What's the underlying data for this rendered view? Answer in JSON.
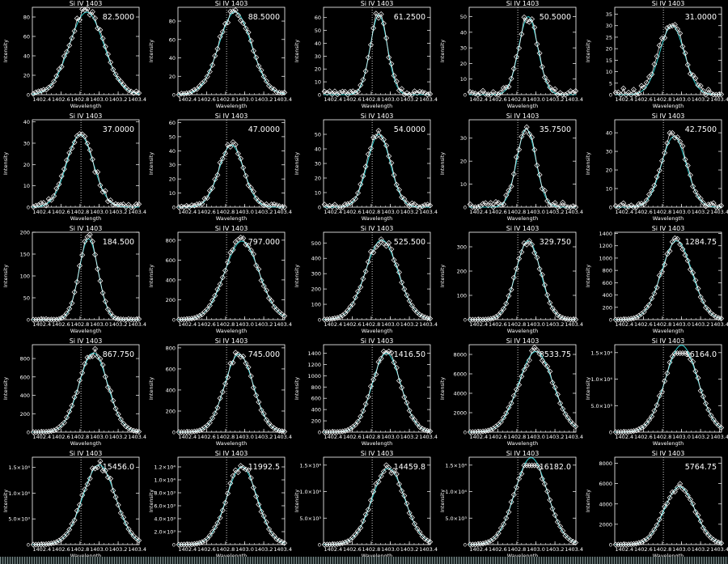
{
  "strip_color": "#7a8a8a",
  "colors": {
    "background": "#000000",
    "axes": "#ffffff",
    "fit": "#2ec4c4",
    "reference_line": "#ffffff"
  },
  "chart_data": [
    {
      "type": "line",
      "title": "Si IV 1403",
      "xlabel": "Wavelength",
      "ylabel": "Intensity",
      "annotation": "82.5000",
      "peak": 85,
      "center": 1402.87,
      "width": 0.18,
      "ylim": [
        0,
        90
      ],
      "yticks": [
        0,
        20,
        40,
        60,
        80
      ],
      "ytick_labels": [
        "0",
        "20",
        "40",
        "60",
        "80"
      ],
      "xlim": [
        1402.3,
        1403.42
      ],
      "xtick_labels": [
        "1402.4",
        "1402.6",
        "1402.8",
        "1403.0",
        "1403.2",
        "1403.4"
      ],
      "ref_x": 1402.81,
      "noise": 3,
      "seed": 1
    },
    {
      "type": "line",
      "title": "Si IV 1403",
      "xlabel": "Wavelength",
      "ylabel": "Intensity",
      "annotation": "88.5000",
      "peak": 90,
      "center": 1402.9,
      "width": 0.17,
      "ylim": [
        0,
        95
      ],
      "yticks": [
        0,
        20,
        40,
        60,
        80
      ],
      "ytick_labels": [
        "0",
        "20",
        "40",
        "60",
        "80"
      ],
      "xlim": [
        1402.3,
        1403.42
      ],
      "xtick_labels": [
        "1402.4",
        "1402.6",
        "1402.8",
        "1403.0",
        "1403.2",
        "1403.4"
      ],
      "ref_x": 1402.81,
      "noise": 2,
      "seed": 2
    },
    {
      "type": "line",
      "title": "Si IV 1403",
      "xlabel": "Wavelength",
      "ylabel": "Intensity",
      "annotation": "61.2500",
      "peak": 62,
      "center": 1402.88,
      "width": 0.09,
      "ylim": [
        0,
        68
      ],
      "yticks": [
        0,
        10,
        20,
        30,
        40,
        50,
        60
      ],
      "ytick_labels": [
        "0",
        "10",
        "20",
        "30",
        "40",
        "50",
        "60"
      ],
      "xlim": [
        1402.3,
        1403.42
      ],
      "xtick_labels": [
        "1402.4",
        "1402.6",
        "1402.8",
        "1403.0",
        "1403.2",
        "1403.4"
      ],
      "ref_x": 1402.81,
      "noise": 4,
      "seed": 3
    },
    {
      "type": "line",
      "title": "Si IV 1403",
      "xlabel": "Wavelength",
      "ylabel": "Intensity",
      "annotation": "50.5000",
      "peak": 50,
      "center": 1402.92,
      "width": 0.1,
      "ylim": [
        0,
        56
      ],
      "yticks": [
        0,
        10,
        20,
        30,
        40,
        50
      ],
      "ytick_labels": [
        "0",
        "10",
        "20",
        "30",
        "40",
        "50"
      ],
      "xlim": [
        1402.3,
        1403.42
      ],
      "xtick_labels": [
        "1402.4",
        "1402.6",
        "1402.8",
        "1403.0",
        "1403.2",
        "1403.4"
      ],
      "ref_x": 1402.81,
      "noise": 4,
      "seed": 4
    },
    {
      "type": "line",
      "title": "Si IV 1403",
      "xlabel": "Wavelength",
      "ylabel": "Intensity",
      "annotation": "31.0000",
      "peak": 30,
      "center": 1402.9,
      "width": 0.13,
      "ylim": [
        0,
        38
      ],
      "yticks": [
        0,
        5,
        10,
        15,
        20,
        25,
        30,
        35
      ],
      "ytick_labels": [
        "0",
        "5",
        "10",
        "15",
        "20",
        "25",
        "30",
        "35"
      ],
      "xlim": [
        1402.3,
        1403.42
      ],
      "xtick_labels": [
        "1402.4",
        "1402.6",
        "1402.8",
        "1403.0",
        "1403.2",
        "1403.4"
      ],
      "ref_x": 1402.81,
      "noise": 4,
      "seed": 5
    },
    {
      "type": "line",
      "title": "Si IV 1403",
      "xlabel": "Wavelength",
      "ylabel": "Intensity",
      "annotation": "37.0000",
      "peak": 34,
      "center": 1402.8,
      "width": 0.14,
      "ylim": [
        0,
        41
      ],
      "yticks": [
        0,
        10,
        20,
        30,
        40
      ],
      "ytick_labels": [
        "0",
        "10",
        "20",
        "30",
        "40"
      ],
      "xlim": [
        1402.3,
        1403.42
      ],
      "xtick_labels": [
        "1402.4",
        "1402.6",
        "1402.8",
        "1403.0",
        "1403.2",
        "1403.4"
      ],
      "ref_x": 1402.81,
      "noise": 3,
      "seed": 6
    },
    {
      "type": "line",
      "title": "Si IV 1403",
      "xlabel": "Wavelength",
      "ylabel": "Intensity",
      "annotation": "47.0000",
      "peak": 44,
      "center": 1402.86,
      "width": 0.13,
      "ylim": [
        0,
        62
      ],
      "yticks": [
        0,
        10,
        20,
        30,
        40,
        50,
        60
      ],
      "ytick_labels": [
        "0",
        "10",
        "20",
        "30",
        "40",
        "50",
        "60"
      ],
      "xlim": [
        1402.3,
        1403.42
      ],
      "xtick_labels": [
        "1402.4",
        "1402.6",
        "1402.8",
        "1403.0",
        "1403.2",
        "1403.4"
      ],
      "ref_x": 1402.81,
      "noise": 3,
      "seed": 7
    },
    {
      "type": "line",
      "title": "Si IV 1403",
      "xlabel": "Wavelength",
      "ylabel": "Intensity",
      "annotation": "54.0000",
      "peak": 50,
      "center": 1402.88,
      "width": 0.12,
      "ylim": [
        0,
        60
      ],
      "yticks": [
        0,
        10,
        20,
        30,
        40,
        50
      ],
      "ytick_labels": [
        "0",
        "10",
        "20",
        "30",
        "40",
        "50"
      ],
      "xlim": [
        1402.3,
        1403.42
      ],
      "xtick_labels": [
        "1402.4",
        "1402.6",
        "1402.8",
        "1403.0",
        "1403.2",
        "1403.4"
      ],
      "ref_x": 1402.81,
      "noise": 3,
      "seed": 8
    },
    {
      "type": "line",
      "title": "Si IV 1403",
      "xlabel": "Wavelength",
      "ylabel": "Intensity",
      "annotation": "35.7500",
      "peak": 34,
      "center": 1402.9,
      "width": 0.1,
      "ylim": [
        0,
        38
      ],
      "yticks": [
        0,
        10,
        20,
        30
      ],
      "ytick_labels": [
        "0",
        "10",
        "20",
        "30"
      ],
      "xlim": [
        1402.3,
        1403.42
      ],
      "xtick_labels": [
        "1402.4",
        "1402.6",
        "1402.8",
        "1403.0",
        "1403.2",
        "1403.4"
      ],
      "ref_x": 1402.81,
      "noise": 3,
      "seed": 9
    },
    {
      "type": "line",
      "title": "Si IV 1403",
      "xlabel": "Wavelength",
      "ylabel": "Intensity",
      "annotation": "42.7500",
      "peak": 38,
      "center": 1402.92,
      "width": 0.13,
      "ylim": [
        0,
        47
      ],
      "yticks": [
        0,
        10,
        20,
        30,
        40
      ],
      "ytick_labels": [
        "0",
        "10",
        "20",
        "30",
        "40"
      ],
      "xlim": [
        1402.3,
        1403.42
      ],
      "xtick_labels": [
        "1402.4",
        "1402.6",
        "1402.8",
        "1403.0",
        "1403.2",
        "1403.4"
      ],
      "ref_x": 1402.81,
      "noise": 3,
      "seed": 10
    },
    {
      "type": "line",
      "title": "Si IV 1403",
      "xlabel": "Wavelength",
      "ylabel": "Intensity",
      "annotation": "184.500",
      "peak": 185,
      "center": 1402.89,
      "width": 0.1,
      "ylim": [
        0,
        200
      ],
      "yticks": [
        0,
        50,
        100,
        150,
        200
      ],
      "ytick_labels": [
        "0",
        "50",
        "100",
        "150",
        "200"
      ],
      "xlim": [
        1402.3,
        1403.42
      ],
      "xtick_labels": [
        "1402.4",
        "1402.6",
        "1402.8",
        "1403.0",
        "1403.2",
        "1403.4"
      ],
      "ref_x": 1402.81,
      "noise": 2,
      "seed": 11
    },
    {
      "type": "line",
      "title": "Si IV 1403",
      "xlabel": "Wavelength",
      "ylabel": "Intensity",
      "annotation": "797.000",
      "peak": 790,
      "center": 1402.97,
      "width": 0.18,
      "ylim": [
        0,
        880
      ],
      "yticks": [
        0,
        200,
        400,
        600,
        800
      ],
      "ytick_labels": [
        "0",
        "200",
        "400",
        "600",
        "800"
      ],
      "xlim": [
        1402.3,
        1403.42
      ],
      "xtick_labels": [
        "1402.4",
        "1402.6",
        "1402.8",
        "1403.0",
        "1403.2",
        "1403.4"
      ],
      "ref_x": 1402.81,
      "noise": 0,
      "seed": 12
    },
    {
      "type": "line",
      "title": "Si IV 1403",
      "xlabel": "Wavelength",
      "ylabel": "Intensity",
      "annotation": "525.500",
      "peak": 520,
      "center": 1402.91,
      "width": 0.17,
      "ylim": [
        0,
        570
      ],
      "yticks": [
        0,
        100,
        200,
        300,
        400,
        500
      ],
      "ytick_labels": [
        "0",
        "100",
        "200",
        "300",
        "400",
        "500"
      ],
      "xlim": [
        1402.3,
        1403.42
      ],
      "xtick_labels": [
        "1402.4",
        "1402.6",
        "1402.8",
        "1403.0",
        "1403.2",
        "1403.4"
      ],
      "ref_x": 1402.81,
      "noise": 0,
      "seed": 13
    },
    {
      "type": "line",
      "title": "Si IV 1403",
      "xlabel": "Wavelength",
      "ylabel": "Intensity",
      "annotation": "329.750",
      "peak": 325,
      "center": 1402.92,
      "width": 0.13,
      "ylim": [
        0,
        360
      ],
      "yticks": [
        0,
        100,
        200,
        300
      ],
      "ytick_labels": [
        "0",
        "100",
        "200",
        "300"
      ],
      "xlim": [
        1402.3,
        1403.42
      ],
      "xtick_labels": [
        "1402.4",
        "1402.6",
        "1402.8",
        "1403.0",
        "1403.2",
        "1403.4"
      ],
      "ref_x": 1402.81,
      "noise": 0,
      "seed": 14
    },
    {
      "type": "line",
      "title": "Si IV 1403",
      "xlabel": "Wavelength",
      "ylabel": "Intensity",
      "annotation": "1284.75",
      "peak": 1280,
      "center": 1402.95,
      "width": 0.16,
      "ylim": [
        0,
        1420
      ],
      "yticks": [
        0,
        200,
        400,
        600,
        800,
        1000,
        1200,
        1400
      ],
      "ytick_labels": [
        "0",
        "200",
        "400",
        "600",
        "800",
        "1000",
        "1200",
        "1400"
      ],
      "xlim": [
        1402.3,
        1403.42
      ],
      "xtick_labels": [
        "1402.4",
        "1402.6",
        "1402.8",
        "1403.0",
        "1403.2",
        "1403.4"
      ],
      "ref_x": 1402.81,
      "noise": 0,
      "seed": 15
    },
    {
      "type": "line",
      "title": "Si IV 1403",
      "xlabel": "Wavelength",
      "ylabel": "Intensity",
      "annotation": "867.750",
      "peak": 860,
      "center": 1402.94,
      "width": 0.15,
      "ylim": [
        0,
        950
      ],
      "yticks": [
        0,
        200,
        400,
        600,
        800
      ],
      "ytick_labels": [
        "0",
        "200",
        "400",
        "600",
        "800"
      ],
      "xlim": [
        1402.3,
        1403.42
      ],
      "xtick_labels": [
        "1402.4",
        "1402.6",
        "1402.8",
        "1403.0",
        "1403.2",
        "1403.4"
      ],
      "ref_x": 1402.81,
      "noise": 0,
      "seed": 16
    },
    {
      "type": "line",
      "title": "Si IV 1403",
      "xlabel": "Wavelength",
      "ylabel": "Intensity",
      "annotation": "745.000",
      "peak": 740,
      "center": 1402.94,
      "width": 0.15,
      "ylim": [
        0,
        830
      ],
      "yticks": [
        0,
        200,
        400,
        600,
        800
      ],
      "ytick_labels": [
        "0",
        "200",
        "400",
        "600",
        "800"
      ],
      "xlim": [
        1402.3,
        1403.42
      ],
      "xtick_labels": [
        "1402.4",
        "1402.6",
        "1402.8",
        "1403.0",
        "1403.2",
        "1403.4"
      ],
      "ref_x": 1402.81,
      "noise": 0,
      "seed": 17
    },
    {
      "type": "line",
      "title": "Si IV 1403",
      "xlabel": "Wavelength",
      "ylabel": "Intensity",
      "annotation": "1416.50",
      "peak": 1400,
      "center": 1402.96,
      "width": 0.15,
      "ylim": [
        0,
        1550
      ],
      "yticks": [
        0,
        200,
        400,
        600,
        800,
        1000,
        1200,
        1400
      ],
      "ytick_labels": [
        "0",
        "200",
        "400",
        "600",
        "800",
        "1000",
        "1200",
        "1400"
      ],
      "xlim": [
        1402.3,
        1403.42
      ],
      "xtick_labels": [
        "1402.4",
        "1402.6",
        "1402.8",
        "1403.0",
        "1403.2",
        "1403.4"
      ],
      "ref_x": 1402.81,
      "noise": 0,
      "seed": 18
    },
    {
      "type": "line",
      "title": "Si IV 1403",
      "xlabel": "Wavelength",
      "ylabel": "Intensity",
      "annotation": "8533.75",
      "peak": 8300,
      "center": 1403.0,
      "width": 0.18,
      "ylim": [
        0,
        9000
      ],
      "yticks": [
        0,
        2000,
        4000,
        6000,
        8000
      ],
      "ytick_labels": [
        "0",
        "2000",
        "4000",
        "6000",
        "8000"
      ],
      "xlim": [
        1402.3,
        1403.42
      ],
      "xtick_labels": [
        "1402.4",
        "1402.6",
        "1402.8",
        "1403.0",
        "1403.2",
        "1403.4"
      ],
      "ref_x": 1402.81,
      "noise": 0,
      "seed": 19
    },
    {
      "type": "line",
      "title": "Si IV 1403",
      "xlabel": "Wavelength",
      "ylabel": "Intensity",
      "annotation": "16164.0",
      "peak": 16400,
      "center": 1403.0,
      "width": 0.17,
      "clip": 14900,
      "ylim": [
        0,
        16500
      ],
      "yticks": [
        0,
        5000,
        10000,
        15000
      ],
      "ytick_labels": [
        "0",
        "5.0×10³",
        "1.0×10⁴",
        "1.5×10⁴"
      ],
      "xlim": [
        1402.3,
        1403.42
      ],
      "xtick_labels": [
        "1402.4",
        "1402.6",
        "1402.8",
        "1403.0",
        "1403.2",
        "1403.4"
      ],
      "ref_x": 1402.81,
      "noise": 0,
      "seed": 20
    },
    {
      "type": "line",
      "title": "Si IV 1403",
      "xlabel": "Wavelength",
      "ylabel": "Intensity",
      "annotation": "15456.0",
      "peak": 15500,
      "center": 1403.0,
      "width": 0.17,
      "ylim": [
        0,
        17000
      ],
      "yticks": [
        0,
        5000,
        10000,
        15000
      ],
      "ytick_labels": [
        "0",
        "5.0×10³",
        "1.0×10⁴",
        "1.5×10⁴"
      ],
      "xlim": [
        1402.3,
        1403.42
      ],
      "xtick_labels": [
        "1402.4",
        "1402.6",
        "1402.8",
        "1403.0",
        "1403.2",
        "1403.4"
      ],
      "ref_x": 1402.81,
      "noise": 0,
      "seed": 21
    },
    {
      "type": "line",
      "title": "Si IV 1403",
      "xlabel": "Wavelength",
      "ylabel": "Intensity",
      "annotation": "11992.5",
      "peak": 12000,
      "center": 1402.97,
      "width": 0.16,
      "ylim": [
        0,
        13500
      ],
      "yticks": [
        0,
        2000,
        4000,
        6000,
        8000,
        10000,
        12000
      ],
      "ytick_labels": [
        "0",
        "2.0×10³",
        "4.0×10³",
        "6.0×10³",
        "8.0×10³",
        "1.0×10⁴",
        "1.2×10⁴"
      ],
      "xlim": [
        1402.3,
        1403.42
      ],
      "xtick_labels": [
        "1402.4",
        "1402.6",
        "1402.8",
        "1403.0",
        "1403.2",
        "1403.4"
      ],
      "ref_x": 1402.81,
      "noise": 0,
      "seed": 22
    },
    {
      "type": "line",
      "title": "Si IV 1403",
      "xlabel": "Wavelength",
      "ylabel": "Intensity",
      "annotation": "14459.8",
      "peak": 14400,
      "center": 1402.98,
      "width": 0.17,
      "ylim": [
        0,
        16500
      ],
      "yticks": [
        0,
        5000,
        10000,
        15000
      ],
      "ytick_labels": [
        "0",
        "5.0×10³",
        "1.0×10⁴",
        "1.5×10⁴"
      ],
      "xlim": [
        1402.3,
        1403.42
      ],
      "xtick_labels": [
        "1402.4",
        "1402.6",
        "1402.8",
        "1403.0",
        "1403.2",
        "1403.4"
      ],
      "ref_x": 1402.81,
      "noise": 0,
      "seed": 23
    },
    {
      "type": "line",
      "title": "Si IV 1403",
      "xlabel": "Wavelength",
      "ylabel": "Intensity",
      "annotation": "16182.0",
      "peak": 16400,
      "center": 1402.95,
      "width": 0.17,
      "clip": 14950,
      "ylim": [
        0,
        16500
      ],
      "yticks": [
        0,
        5000,
        10000,
        15000
      ],
      "ytick_labels": [
        "0",
        "5.0×10³",
        "1.0×10⁴",
        "1.5×10⁴"
      ],
      "xlim": [
        1402.3,
        1403.42
      ],
      "xtick_labels": [
        "1402.4",
        "1402.6",
        "1402.8",
        "1403.0",
        "1403.2",
        "1403.4"
      ],
      "ref_x": 1402.81,
      "noise": 0,
      "seed": 24
    },
    {
      "type": "line",
      "title": "Si IV 1403",
      "xlabel": "Wavelength",
      "ylabel": "Intensity",
      "annotation": "5764.75",
      "peak": 5700,
      "center": 1402.98,
      "width": 0.16,
      "ylim": [
        0,
        8600
      ],
      "yticks": [
        0,
        2000,
        4000,
        6000,
        8000
      ],
      "ytick_labels": [
        "0",
        "2000",
        "4000",
        "6000",
        "8000"
      ],
      "xlim": [
        1402.3,
        1403.42
      ],
      "xtick_labels": [
        "1402.4",
        "1402.6",
        "1402.8",
        "1403.0",
        "1403.2",
        "1403.4"
      ],
      "ref_x": 1402.81,
      "noise": 0,
      "seed": 25
    }
  ]
}
